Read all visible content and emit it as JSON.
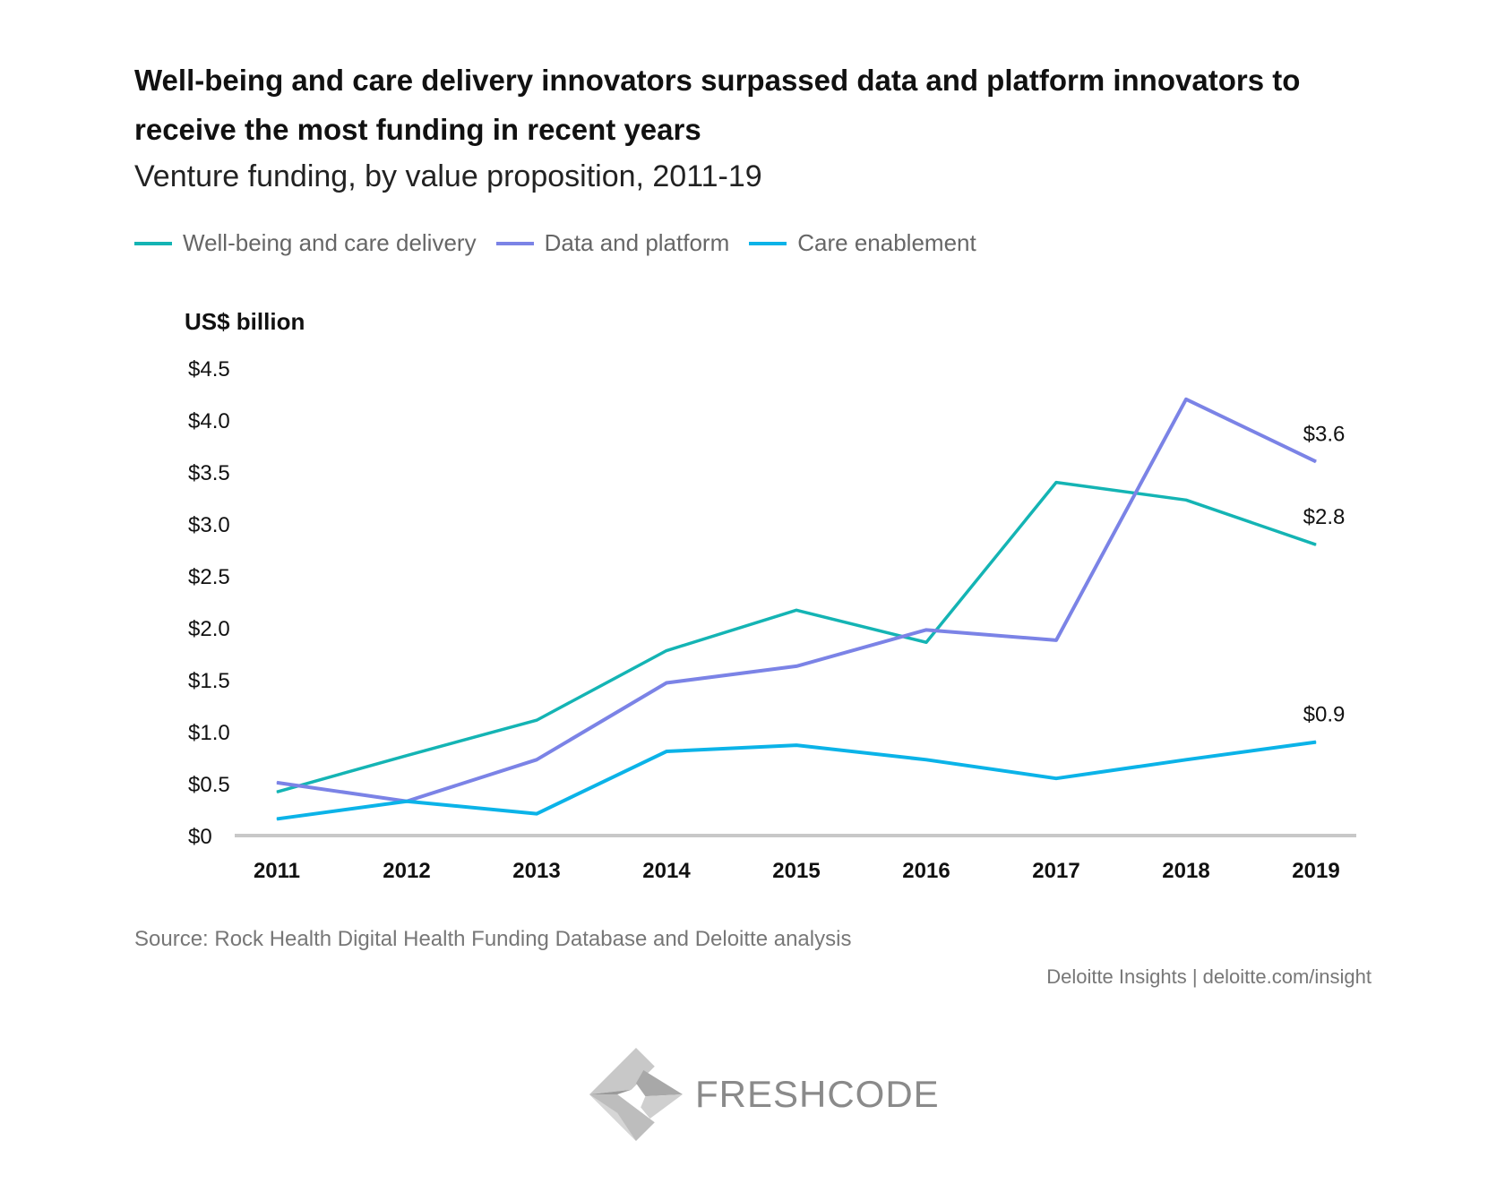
{
  "chart_data": {
    "type": "line",
    "title": "Well-being and care delivery innovators surpassed data and platform innovators to receive the most funding in recent years",
    "subtitle": "Venture funding, by value proposition, 2011-19",
    "ylabel": "US$ billion",
    "xlabel": "",
    "x": [
      "2011",
      "2012",
      "2013",
      "2014",
      "2015",
      "2016",
      "2017",
      "2018",
      "2019"
    ],
    "ylim": [
      0,
      4.5
    ],
    "yticks": [
      0,
      0.5,
      1.0,
      1.5,
      2.0,
      2.5,
      3.0,
      3.5,
      4.0,
      4.5
    ],
    "ytick_labels": [
      "$0",
      "$0.5",
      "$1.0",
      "$1.5",
      "$2.0",
      "$2.5",
      "$3.0",
      "$3.5",
      "$4.0",
      "$4.5"
    ],
    "grid": false,
    "legend_placement": "top-left",
    "series": [
      {
        "name": "Well-being and care delivery",
        "color": "#14b4b4",
        "values": [
          0.42,
          0.77,
          1.11,
          1.78,
          2.17,
          1.86,
          3.4,
          3.23,
          2.8
        ],
        "end_label": "$2.8"
      },
      {
        "name": "Data and platform",
        "color": "#7b83e6",
        "values": [
          0.51,
          0.33,
          0.73,
          1.47,
          1.63,
          1.98,
          1.88,
          4.2,
          3.6
        ],
        "end_label": "$3.6"
      },
      {
        "name": "Care enablement",
        "color": "#0bb3e8",
        "values": [
          0.16,
          0.33,
          0.21,
          0.81,
          0.87,
          0.73,
          0.55,
          0.73,
          0.9
        ],
        "end_label": "$0.9"
      }
    ]
  },
  "footer": {
    "source": "Source: Rock Health Digital Health Funding Database and Deloitte analysis",
    "credit": "Deloitte Insights | deloitte.com/insight"
  },
  "logo": {
    "text": "FRESHCODE"
  }
}
